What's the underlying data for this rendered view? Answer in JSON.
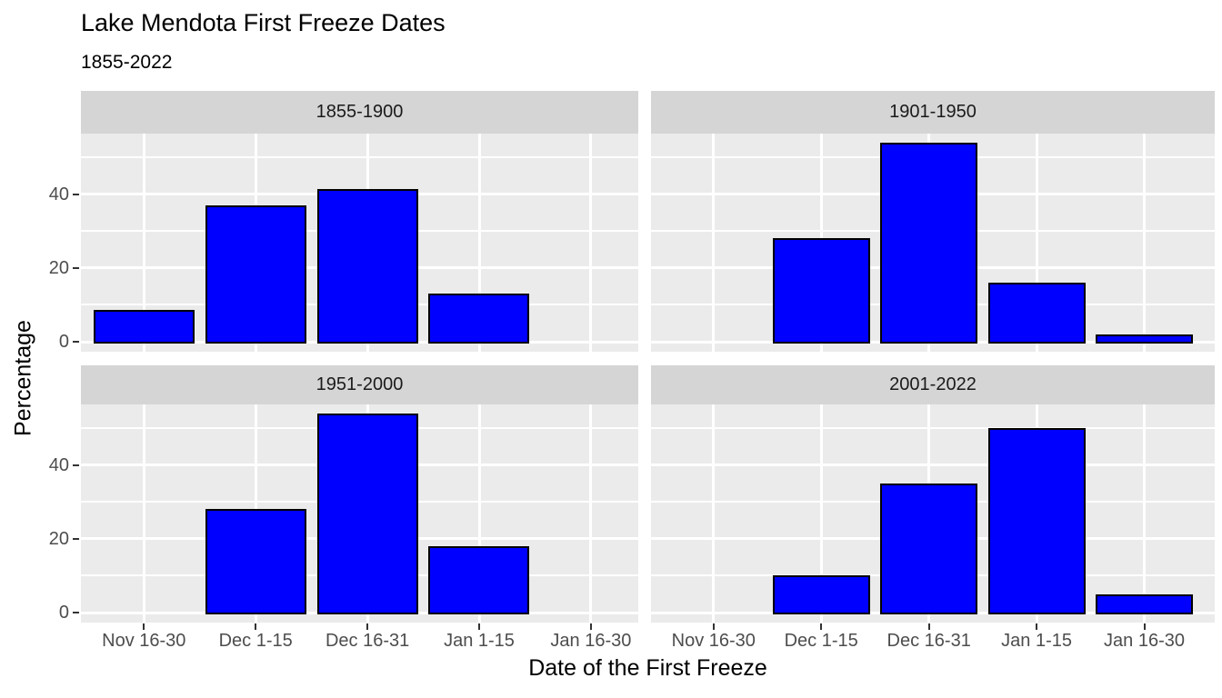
{
  "chart_data": {
    "type": "bar",
    "title": "Lake Mendota First Freeze Dates",
    "subtitle": "1855-2022",
    "xlabel": "Date of the First Freeze",
    "ylabel": "Percentage",
    "categories": [
      "Nov 16-30",
      "Dec 1-15",
      "Dec 16-31",
      "Jan 1-15",
      "Jan 16-30"
    ],
    "facets": [
      {
        "label": "1855-1900",
        "values": [
          8.7,
          37,
          41.3,
          13,
          0
        ]
      },
      {
        "label": "1901-1950",
        "values": [
          0,
          28,
          54,
          16,
          2
        ]
      },
      {
        "label": "1951-2000",
        "values": [
          0,
          28,
          54,
          18,
          0
        ]
      },
      {
        "label": "2001-2022",
        "values": [
          0,
          10,
          35,
          50,
          5
        ]
      }
    ],
    "facet_layout": "2x2 grid, shared axes",
    "y_ticks": [
      0,
      20,
      40
    ],
    "y_minor": [
      10,
      30,
      50
    ],
    "ylim": [
      -2.7,
      56.5
    ],
    "grid": "white major and minor gridlines on gray panel",
    "legend": "none",
    "colors": {
      "bar_fill": "#0000FF",
      "bar_stroke": "#000000",
      "panel_bg": "#EBEBEB",
      "strip_bg": "#D5D5D5",
      "grid": "#FFFFFF",
      "tick_label": "#4D4D4D",
      "strip_text": "#1A1A1A",
      "title_text": "#000000"
    }
  }
}
